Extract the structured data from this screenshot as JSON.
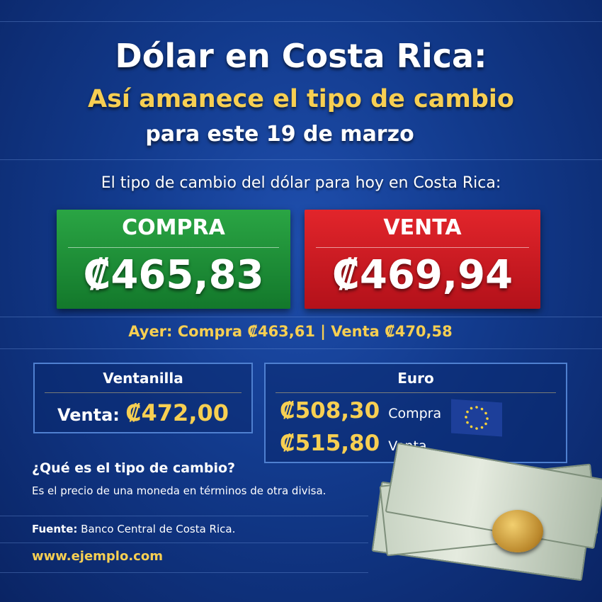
{
  "header": {
    "title": "Dólar en Costa Rica:",
    "subtitle": "Así amanece el tipo de cambio",
    "date_line": "para este 19 de marzo"
  },
  "intro": "El tipo de cambio del dólar para hoy en Costa Rica:",
  "compra": {
    "label": "COMPRA",
    "value": "₡465,83",
    "color": "#1f9338"
  },
  "venta": {
    "label": "VENTA",
    "value": "₡469,94",
    "color": "#d11c23"
  },
  "ayer": "Ayer: Compra ₡463,61 | Venta ₡470,58",
  "ventanilla": {
    "title": "Ventanilla",
    "label": "Venta:",
    "value": "₡472,00"
  },
  "euro": {
    "title": "Euro",
    "compra_value": "₡508,30",
    "compra_label": "Compra",
    "venta_value": "₡515,80",
    "venta_label": "Venta",
    "flag_icon": "eu-flag-icon"
  },
  "info": {
    "question": "¿Qué es el tipo de cambio?",
    "answer": "Es el precio de una moneda en términos de otra divisa."
  },
  "footer": {
    "source_label": "Fuente:",
    "source": "Banco Central de Costa Rica.",
    "website": "www.ejemplo.com"
  },
  "colors": {
    "background": "#123a8c",
    "accent": "#f7cf52"
  }
}
